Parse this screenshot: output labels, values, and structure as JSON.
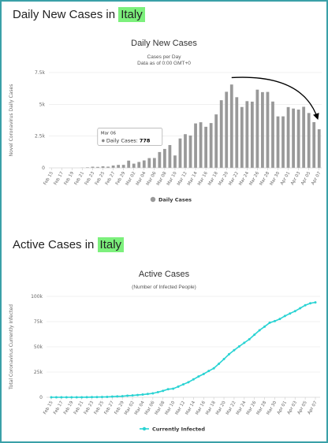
{
  "section1": {
    "heading_prefix": "Daily New Cases in ",
    "heading_highlight": "Italy"
  },
  "section2": {
    "heading_prefix": "Active Cases in ",
    "heading_highlight": "Italy"
  },
  "colors": {
    "bar": "#999999",
    "line": "#2ad3d3",
    "highlight": "#7cf07c",
    "frame": "#3aa0a8"
  },
  "tooltip": {
    "date": "Mar 06",
    "label": "Daily Cases:",
    "value": "778"
  },
  "chart_data": [
    {
      "type": "bar",
      "title": "Daily New Cases",
      "subtitle_line1": "Cases per Day",
      "subtitle_line2": "Data as of 0:00 GMT+0",
      "ylabel": "Novel Coronavirus Daily Cases",
      "legend": "Daily Cases",
      "ylim": [
        0,
        7500
      ],
      "yticks": [
        "0",
        "2.5k",
        "5k",
        "7.5k"
      ],
      "ytick_values": [
        0,
        2500,
        5000,
        7500
      ],
      "categories": [
        "Feb 15",
        "Feb 16",
        "Feb 17",
        "Feb 18",
        "Feb 19",
        "Feb 20",
        "Feb 21",
        "Feb 22",
        "Feb 23",
        "Feb 24",
        "Feb 25",
        "Feb 26",
        "Feb 27",
        "Feb 28",
        "Feb 29",
        "Mar 01",
        "Mar 02",
        "Mar 03",
        "Mar 04",
        "Mar 05",
        "Mar 06",
        "Mar 07",
        "Mar 08",
        "Mar 09",
        "Mar 10",
        "Mar 11",
        "Mar 12",
        "Mar 13",
        "Mar 14",
        "Mar 15",
        "Mar 16",
        "Mar 17",
        "Mar 18",
        "Mar 19",
        "Mar 20",
        "Mar 21",
        "Mar 22",
        "Mar 23",
        "Mar 24",
        "Mar 25",
        "Mar 26",
        "Mar 27",
        "Mar 28",
        "Mar 29",
        "Mar 30",
        "Mar 31",
        "Apr 01",
        "Apr 02",
        "Apr 03",
        "Apr 04",
        "Apr 05",
        "Apr 06",
        "Apr 07"
      ],
      "xtick_labels": [
        "Feb 15",
        "Feb 17",
        "Feb 19",
        "Feb 21",
        "Feb 23",
        "Feb 25",
        "Feb 27",
        "Feb 29",
        "Mar 02",
        "Mar 04",
        "Mar 06",
        "Mar 08",
        "Mar 10",
        "Mar 12",
        "Mar 14",
        "Mar 16",
        "Mar 18",
        "Mar 20",
        "Mar 22",
        "Mar 24",
        "Mar 26",
        "Mar 28",
        "Mar 30",
        "Apr 01",
        "Apr 03",
        "Apr 05",
        "Apr 07"
      ],
      "values": [
        0,
        0,
        0,
        0,
        0,
        0,
        17,
        42,
        93,
        78,
        123,
        97,
        185,
        234,
        239,
        573,
        335,
        466,
        587,
        769,
        778,
        1247,
        1492,
        1797,
        977,
        2313,
        2651,
        2547,
        3497,
        3590,
        3233,
        3526,
        4207,
        5322,
        5986,
        6557,
        5560,
        4789,
        5249,
        5210,
        6153,
        5959,
        5974,
        5217,
        4050,
        4053,
        4782,
        4668,
        4585,
        4805,
        4316,
        3599,
        3039
      ],
      "annotation": "downward-trend-arrow"
    },
    {
      "type": "line",
      "title": "Active Cases",
      "subtitle": "(Number of Infected People)",
      "ylabel": "Total Coronavirus Currently Infected",
      "legend": "Currently Infected",
      "ylim": [
        0,
        100000
      ],
      "yticks": [
        "0",
        "25k",
        "50k",
        "75k",
        "100k"
      ],
      "ytick_values": [
        0,
        25000,
        50000,
        75000,
        100000
      ],
      "categories": [
        "Feb 15",
        "Feb 16",
        "Feb 17",
        "Feb 18",
        "Feb 19",
        "Feb 20",
        "Feb 21",
        "Feb 22",
        "Feb 23",
        "Feb 24",
        "Feb 25",
        "Feb 26",
        "Feb 27",
        "Feb 28",
        "Feb 29",
        "Mar 01",
        "Mar 02",
        "Mar 03",
        "Mar 04",
        "Mar 05",
        "Mar 06",
        "Mar 07",
        "Mar 08",
        "Mar 09",
        "Mar 10",
        "Mar 11",
        "Mar 12",
        "Mar 13",
        "Mar 14",
        "Mar 15",
        "Mar 16",
        "Mar 17",
        "Mar 18",
        "Mar 19",
        "Mar 20",
        "Mar 21",
        "Mar 22",
        "Mar 23",
        "Mar 24",
        "Mar 25",
        "Mar 26",
        "Mar 27",
        "Mar 28",
        "Mar 29",
        "Mar 30",
        "Mar 31",
        "Apr 01",
        "Apr 02",
        "Apr 03",
        "Apr 04",
        "Apr 05",
        "Apr 06",
        "Apr 07"
      ],
      "xtick_labels": [
        "Feb 15",
        "Feb 17",
        "Feb 19",
        "Feb 21",
        "Feb 23",
        "Feb 25",
        "Feb 27",
        "Feb 29",
        "Mar 02",
        "Mar 04",
        "Mar 06",
        "Mar 08",
        "Mar 10",
        "Mar 12",
        "Mar 14",
        "Mar 16",
        "Mar 18",
        "Mar 20",
        "Mar 22",
        "Mar 24",
        "Mar 26",
        "Mar 28",
        "Mar 30",
        "Apr 01",
        "Apr 03",
        "Apr 05",
        "Apr 07"
      ],
      "values": [
        3,
        3,
        3,
        3,
        3,
        3,
        20,
        62,
        155,
        229,
        322,
        400,
        650,
        888,
        1049,
        1577,
        1835,
        2263,
        2706,
        3296,
        3916,
        5061,
        6387,
        7985,
        8514,
        10590,
        12839,
        14955,
        17750,
        20603,
        23073,
        26062,
        28710,
        33190,
        37860,
        42681,
        46638,
        50418,
        54030,
        57521,
        62013,
        66414,
        70065,
        73880,
        75528,
        77635,
        80572,
        83049,
        85388,
        88274,
        91246,
        93187,
        94067
      ]
    }
  ]
}
